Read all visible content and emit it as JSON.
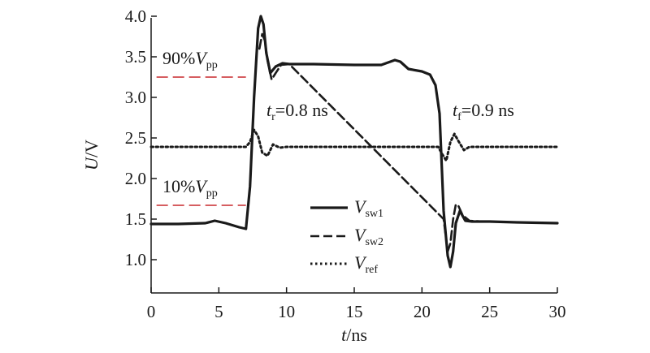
{
  "chart_data": {
    "type": "line",
    "xlabel": "t/ns",
    "ylabel": "U/V",
    "xlim": [
      0,
      30
    ],
    "ylim": [
      0.6,
      4.0
    ],
    "xticks": [
      "0",
      "5",
      "10",
      "15",
      "20",
      "25",
      "30"
    ],
    "yticks": [
      "1.0",
      "1.5",
      "2.0",
      "2.5",
      "3.0",
      "3.5",
      "4.0"
    ],
    "grid": false,
    "legend_position": "bottom-right",
    "series": [
      {
        "name": "Vsw1",
        "style": "solid",
        "color": "#1a1a1a",
        "x": [
          0,
          2,
          4,
          4.7,
          5.5,
          6.5,
          7.0,
          7.3,
          7.6,
          7.9,
          8.1,
          8.3,
          8.5,
          8.8,
          9.2,
          9.7,
          10.2,
          12,
          15,
          17,
          18,
          18.4,
          19,
          20,
          20.6,
          21.0,
          21.3,
          21.6,
          21.9,
          22.1,
          22.3,
          22.5,
          22.8,
          23.2,
          23.7,
          25,
          27,
          30
        ],
        "y": [
          1.44,
          1.44,
          1.45,
          1.48,
          1.45,
          1.4,
          1.38,
          1.9,
          3.0,
          3.85,
          4.0,
          3.9,
          3.55,
          3.3,
          3.38,
          3.42,
          3.41,
          3.41,
          3.4,
          3.4,
          3.46,
          3.44,
          3.35,
          3.32,
          3.28,
          3.15,
          2.8,
          1.6,
          1.05,
          0.91,
          1.1,
          1.45,
          1.6,
          1.48,
          1.47,
          1.47,
          1.46,
          1.45
        ]
      },
      {
        "name": "Vsw2",
        "style": "dashed",
        "color": "#1a1a1a",
        "x": [
          8.0,
          8.2,
          8.4,
          8.6,
          8.9,
          9.2,
          9.6,
          10.2,
          21.6,
          21.9,
          22.1,
          22.3,
          22.5,
          22.7,
          23.0,
          23.5,
          24.5
        ],
        "y": [
          3.6,
          3.78,
          3.7,
          3.45,
          3.22,
          3.3,
          3.4,
          3.41,
          1.5,
          1.1,
          1.2,
          1.5,
          1.68,
          1.66,
          1.55,
          1.48,
          1.47
        ]
      },
      {
        "name": "Vref",
        "style": "dotted",
        "color": "#1a1a1a",
        "x": [
          0,
          7.0,
          7.3,
          7.6,
          7.9,
          8.2,
          8.6,
          9.0,
          9.5,
          10,
          21.2,
          21.5,
          21.8,
          22.1,
          22.4,
          22.7,
          23.1,
          23.5,
          30
        ],
        "y": [
          2.39,
          2.39,
          2.45,
          2.6,
          2.52,
          2.32,
          2.28,
          2.42,
          2.38,
          2.39,
          2.39,
          2.3,
          2.22,
          2.45,
          2.55,
          2.46,
          2.35,
          2.39,
          2.39
        ]
      }
    ],
    "annotations": {
      "v90_prefix": "90%",
      "v90_var": "V",
      "v90_sub": "pp",
      "v90_level": 3.25,
      "v10_prefix": "10%",
      "v10_var": "V",
      "v10_sub": "pp",
      "v10_level": 1.67,
      "level_line_color": "#c8282d",
      "level_line_x": [
        0.4,
        7.0
      ],
      "tr_var": "t",
      "tr_sub": "r",
      "tr_text": "=0.8 ns",
      "tf_var": "t",
      "tf_sub": "f",
      "tf_text": "=0.9 ns"
    },
    "legend": [
      {
        "var": "V",
        "sub": "sw1",
        "style": "solid"
      },
      {
        "var": "V",
        "sub": "sw2",
        "style": "dashed"
      },
      {
        "var": "V",
        "sub": "ref",
        "style": "dotted"
      }
    ]
  }
}
